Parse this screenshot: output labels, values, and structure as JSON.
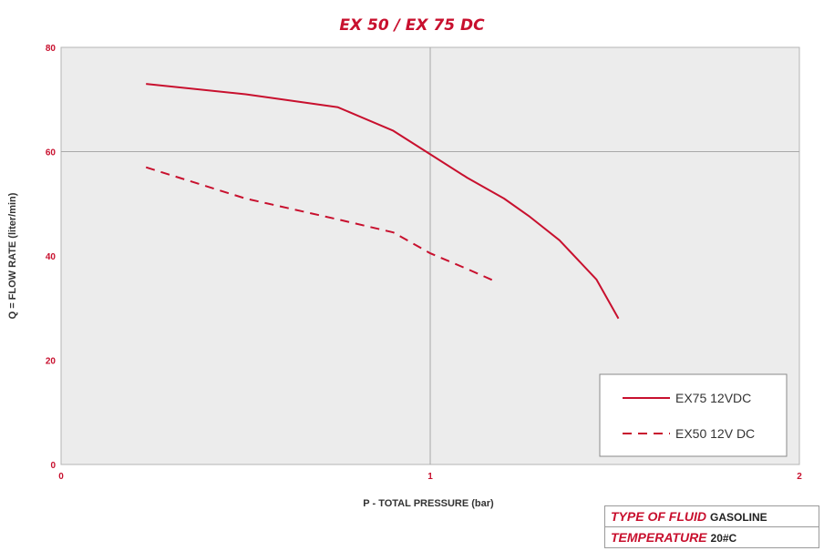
{
  "chart_data": {
    "type": "line",
    "title": "EX 50 / EX 75 DC",
    "xlabel": "P - TOTAL PRESSURE (bar)",
    "ylabel": "Q = FLOW RATE (liter/min)",
    "xlim": [
      0,
      2
    ],
    "ylim": [
      0,
      80
    ],
    "x_ticks": [
      "0",
      "1",
      "2"
    ],
    "y_ticks": [
      "0",
      "20",
      "40",
      "60",
      "80"
    ],
    "grid": "major lines at x=1 and y=60",
    "legend_position": "bottom-right",
    "series": [
      {
        "name": "EX75 12VDC",
        "style": "solid",
        "color": "#c8102e",
        "points": [
          [
            0.23,
            73
          ],
          [
            0.5,
            71
          ],
          [
            0.75,
            68.5
          ],
          [
            0.9,
            64
          ],
          [
            1.0,
            59.5
          ],
          [
            1.1,
            55
          ],
          [
            1.2,
            51
          ],
          [
            1.27,
            47.5
          ],
          [
            1.35,
            43
          ],
          [
            1.45,
            35.5
          ],
          [
            1.51,
            28
          ]
        ]
      },
      {
        "name": "EX50 12V DC",
        "style": "dashed",
        "color": "#c8102e",
        "points": [
          [
            0.23,
            57
          ],
          [
            0.5,
            51
          ],
          [
            0.75,
            47
          ],
          [
            0.9,
            44.5
          ],
          [
            1.0,
            40.5
          ],
          [
            1.1,
            37.5
          ],
          [
            1.18,
            35
          ]
        ]
      }
    ]
  },
  "info": {
    "rows": [
      {
        "key": "TYPE OF FLUID",
        "value": "GASOLINE"
      },
      {
        "key": "TEMPERATURE",
        "value": "20#C"
      }
    ]
  }
}
